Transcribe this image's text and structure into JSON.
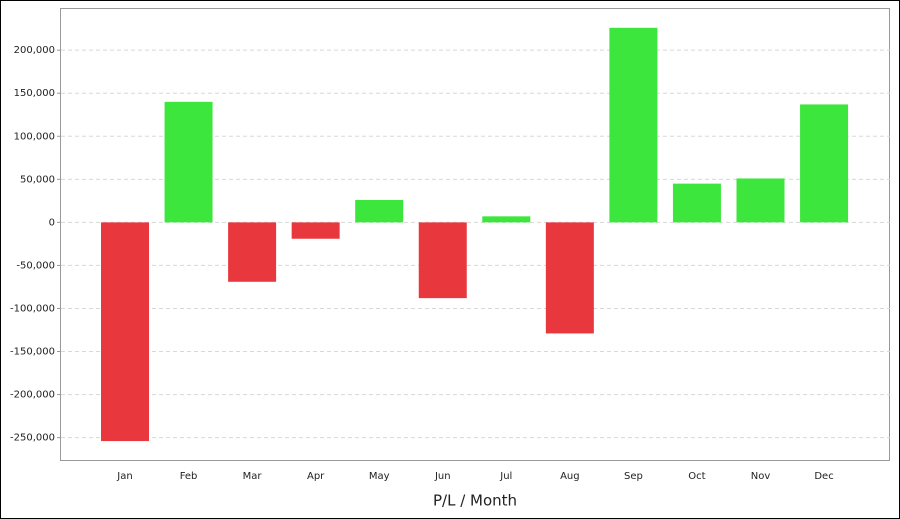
{
  "chart_data": {
    "type": "bar",
    "x_label": "P/L / Month",
    "categories": [
      "Jan",
      "Feb",
      "Mar",
      "Apr",
      "May",
      "Jun",
      "Jul",
      "Aug",
      "Sep",
      "Oct",
      "Nov",
      "Dec"
    ],
    "values": [
      -254000,
      140000,
      -69000,
      -19000,
      26000,
      -88000,
      7000,
      -129000,
      226000,
      45000,
      51000,
      137000
    ],
    "positive_color": "#3de63d",
    "negative_color": "#e8383d",
    "ylim": [
      -276000,
      249000
    ],
    "yticks": [
      {
        "value": -250000,
        "label": "-250,000"
      },
      {
        "value": -200000,
        "label": "-200,000"
      },
      {
        "value": -150000,
        "label": "-150,000"
      },
      {
        "value": -100000,
        "label": "-100,000"
      },
      {
        "value": -50000,
        "label": "-50,000"
      },
      0,
      {
        "value": 50000,
        "label": "50,000"
      },
      {
        "value": 100000,
        "label": "100,000"
      },
      {
        "value": 150000,
        "label": "150,000"
      },
      {
        "value": 200000,
        "label": "200,000"
      }
    ],
    "grid": true
  }
}
